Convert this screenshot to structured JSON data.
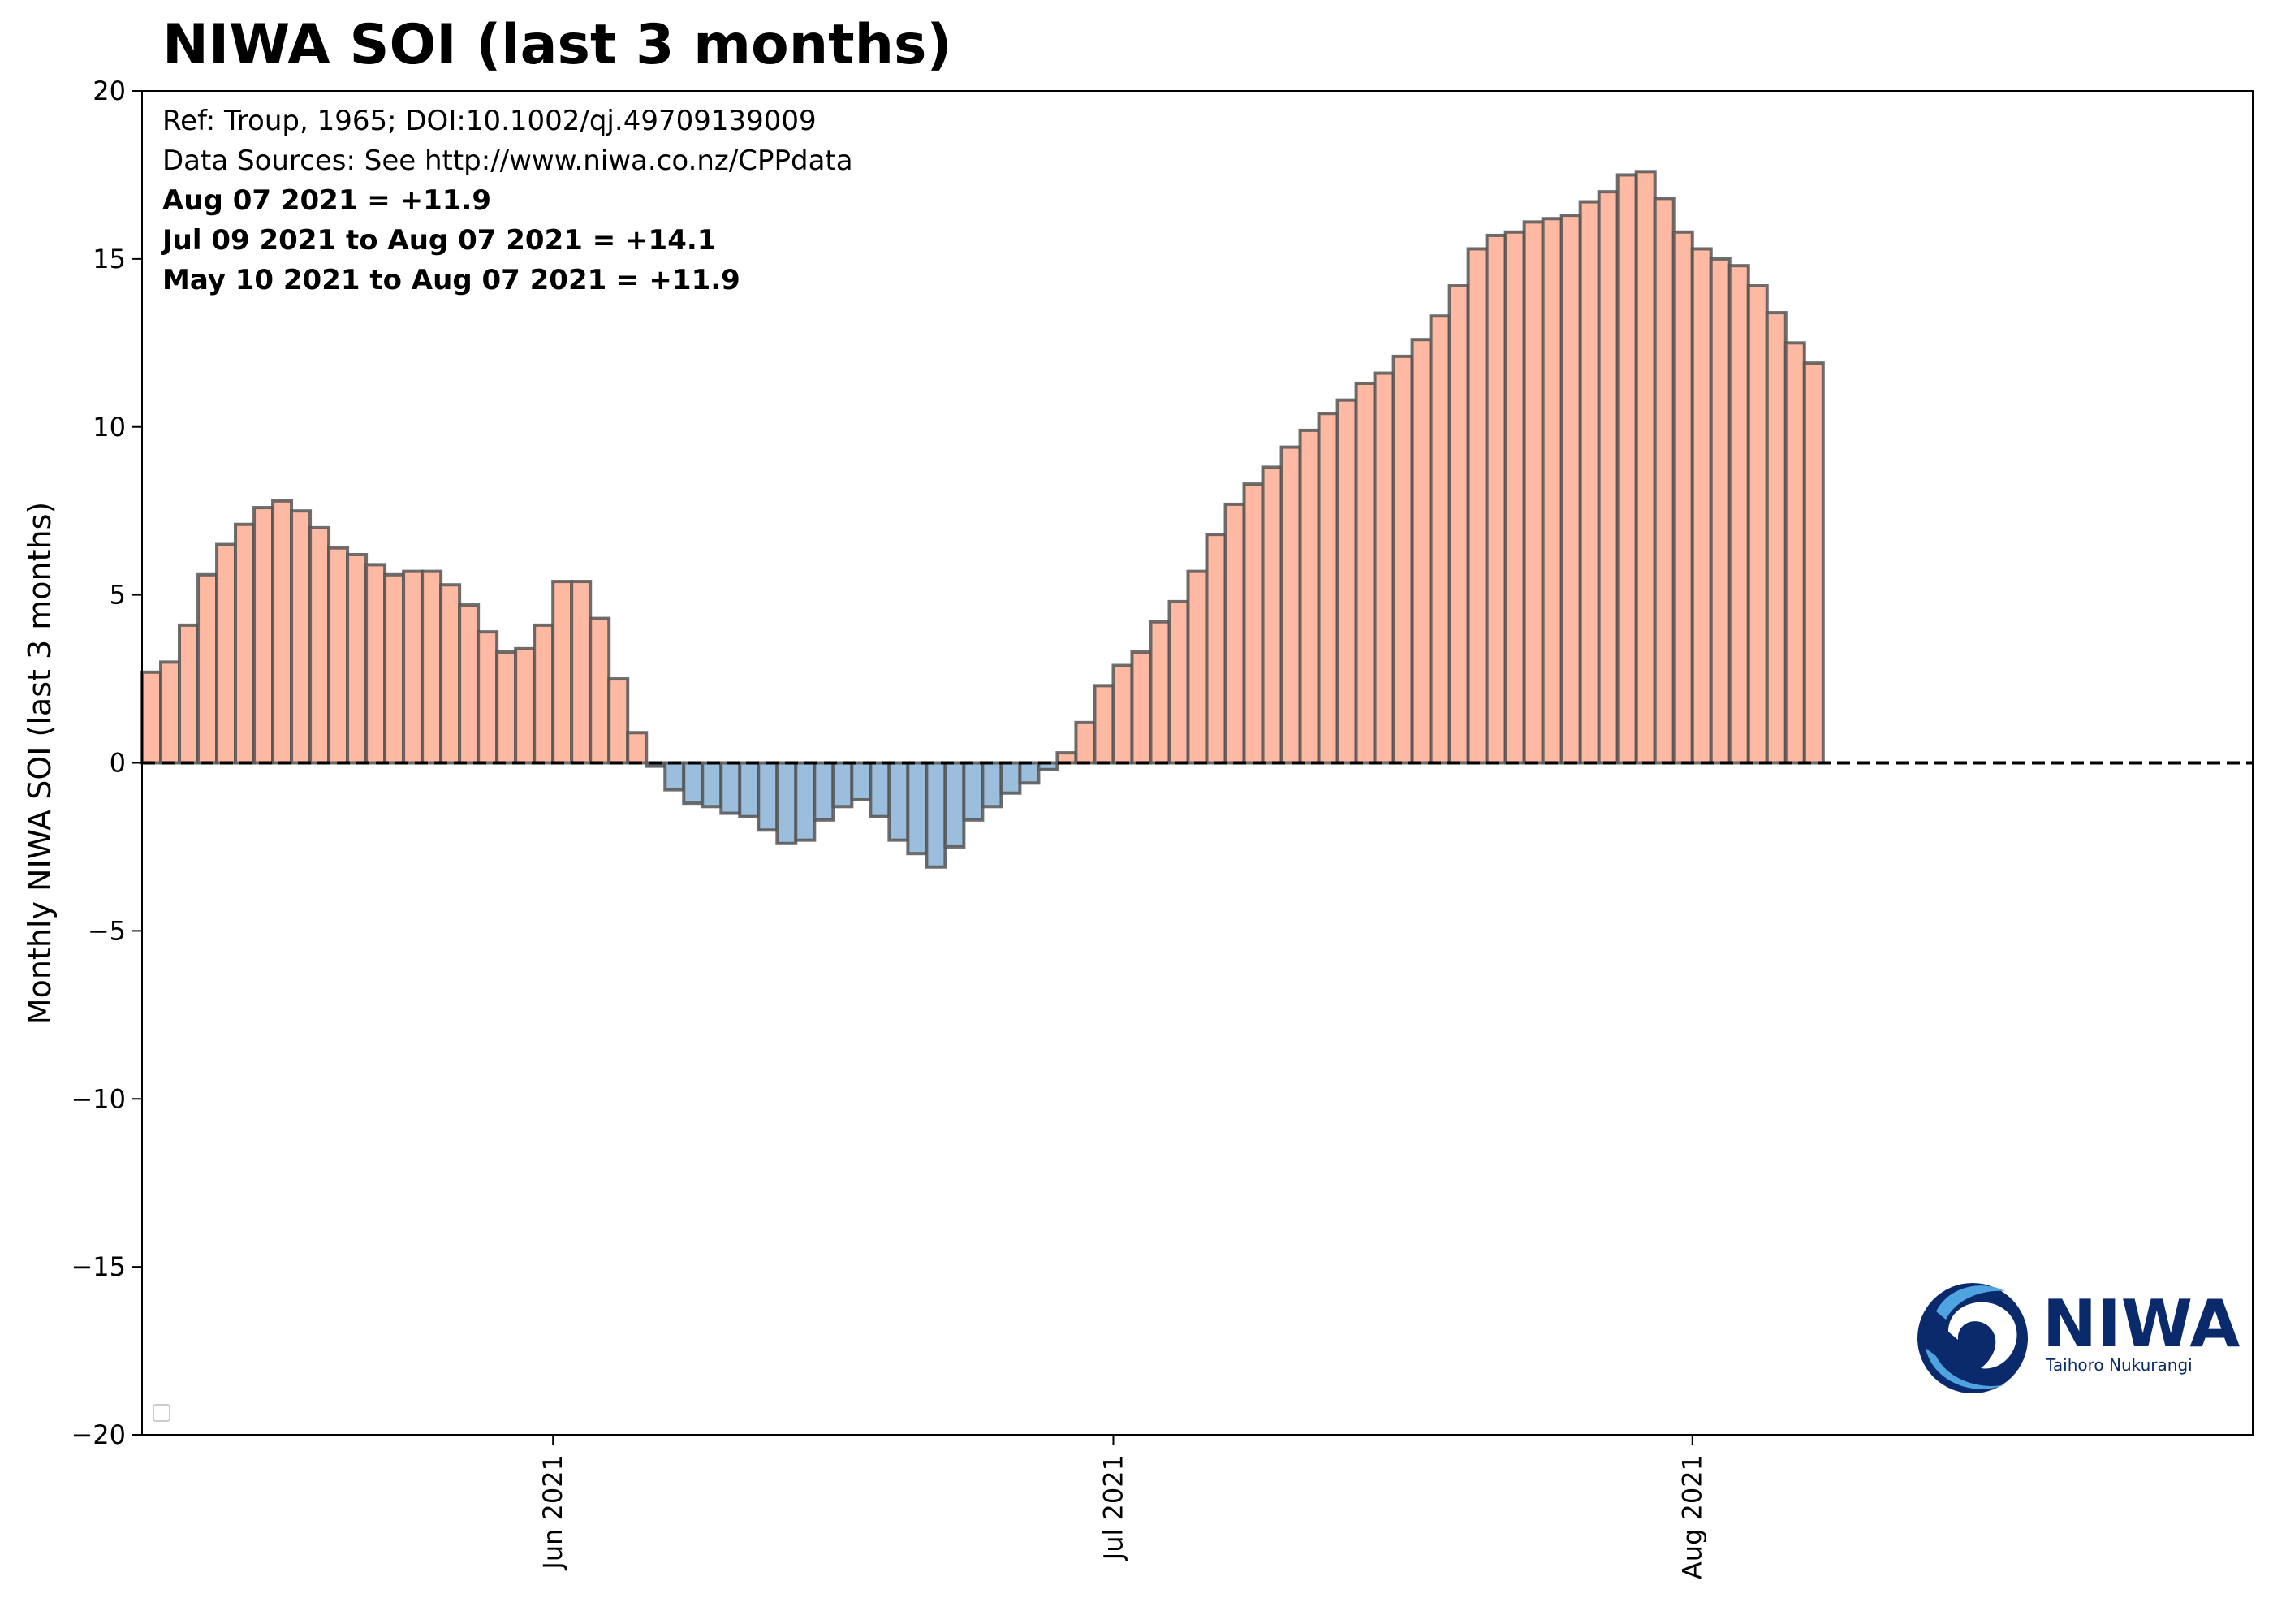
{
  "chart_data": {
    "type": "bar",
    "title": "NIWA SOI (last 3 months)",
    "xlabel": "",
    "ylabel": "Monthly NIWA SOI (last 3 months)",
    "ylim": [
      -20,
      20
    ],
    "yticks": [
      20,
      15,
      10,
      5,
      0,
      -5,
      -10,
      -15,
      -20
    ],
    "ytick_labels": [
      "20",
      "15",
      "10",
      "5",
      "0",
      "−5",
      "−10",
      "−15",
      "−20"
    ],
    "xlim": [
      "2021-05-10",
      "2021-08-31"
    ],
    "xticks": [
      {
        "date": "2021-06-01",
        "label": "Jun 2021"
      },
      {
        "date": "2021-07-01",
        "label": "Jul 2021"
      },
      {
        "date": "2021-08-01",
        "label": "Aug 2021"
      }
    ],
    "first_date": "2021-05-10",
    "zero_line": "dashed",
    "grid": false,
    "colors": {
      "positive": "#fdb9a1",
      "negative": "#9bbedc",
      "edge": "#555555",
      "zero_line": "#000000"
    },
    "values": [
      2.7,
      3.0,
      4.1,
      5.6,
      6.5,
      7.1,
      7.6,
      7.8,
      7.5,
      7.0,
      6.4,
      6.2,
      5.9,
      5.6,
      5.7,
      5.7,
      5.3,
      4.7,
      3.9,
      3.3,
      3.4,
      4.1,
      5.4,
      5.4,
      4.3,
      2.5,
      0.9,
      -0.1,
      -0.8,
      -1.2,
      -1.3,
      -1.5,
      -1.6,
      -2.0,
      -2.4,
      -2.3,
      -1.7,
      -1.3,
      -1.1,
      -1.6,
      -2.3,
      -2.7,
      -3.1,
      -2.5,
      -1.7,
      -1.3,
      -0.9,
      -0.6,
      -0.2,
      0.3,
      1.2,
      2.3,
      2.9,
      3.3,
      4.2,
      4.8,
      5.7,
      6.8,
      7.7,
      8.3,
      8.8,
      9.4,
      9.9,
      10.4,
      10.8,
      11.3,
      11.6,
      12.1,
      12.6,
      13.3,
      14.2,
      15.3,
      15.7,
      15.8,
      16.1,
      16.2,
      16.3,
      16.7,
      17.0,
      17.5,
      17.6,
      16.8,
      15.8,
      15.3,
      15.0,
      14.8,
      14.2,
      13.4,
      12.5,
      11.9
    ]
  },
  "annotations": {
    "ref": "Ref: Troup, 1965; DOI:10.1002/qj.49709139009",
    "sources": "Data Sources: See http://www.niwa.co.nz/CPPdata",
    "daily": "Aug 07 2021  = +11.9",
    "thirty_day": "Jul 09 2021 to Aug 07 2021 = +14.1",
    "ninety_day": "May 10 2021 to Aug 07 2021 = +11.9"
  },
  "logo": {
    "word": "NIWA",
    "subtitle": "Taihoro Nukurangi"
  }
}
